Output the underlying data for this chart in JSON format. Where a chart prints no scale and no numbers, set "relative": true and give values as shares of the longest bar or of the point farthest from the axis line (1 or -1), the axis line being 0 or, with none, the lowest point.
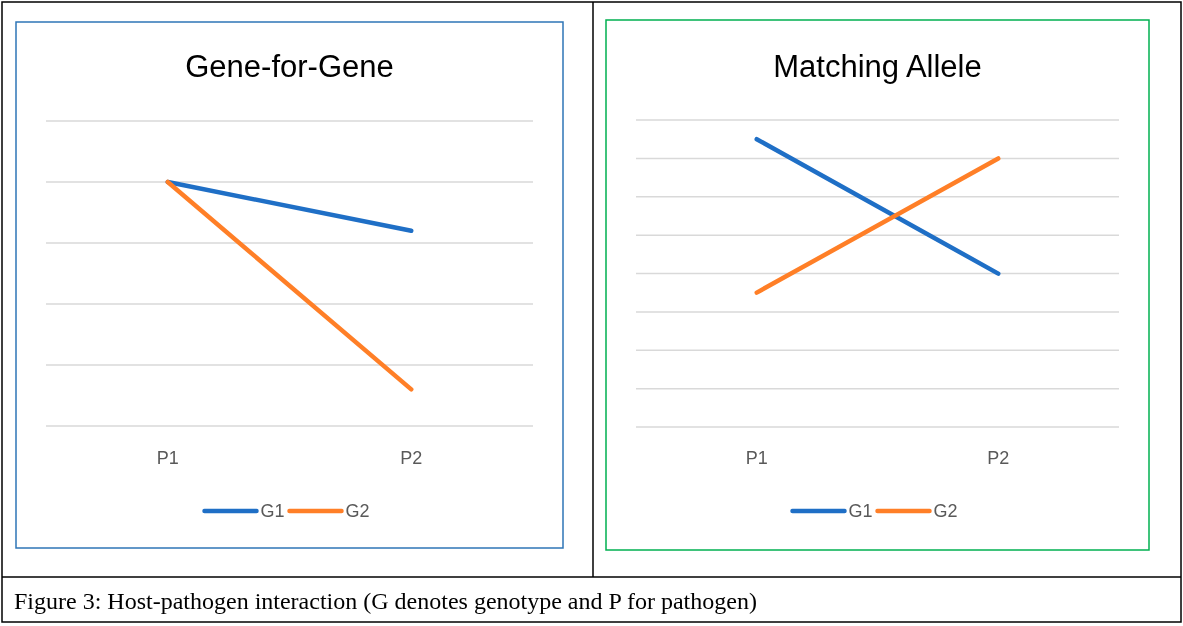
{
  "chart_data": [
    {
      "type": "line",
      "title": "Gene-for-Gene",
      "categories": [
        "P1",
        "P2"
      ],
      "relative": true,
      "grid": "y",
      "legend": "bottom",
      "marker": "none",
      "line_style": "solid",
      "annotations": [
        "Figure 3: Host-pathogen interaction (G denotes genotype and P for pathogen)"
      ],
      "series": [
        {
          "name": "G1",
          "color": "#1f6fc6",
          "values": [
            1,
            0.8
          ]
        },
        {
          "name": "G2",
          "color": "#ff7f27",
          "values": [
            1,
            0.15
          ]
        }
      ]
    },
    {
      "type": "line",
      "title": "Matching Allele",
      "categories": [
        "P1",
        "P2"
      ],
      "relative": true,
      "grid": "y",
      "legend": "bottom",
      "marker": "none",
      "line_style": "solid",
      "series": [
        {
          "name": "G1",
          "color": "#1f6fc6",
          "values": [
            1,
            0.533
          ]
        },
        {
          "name": "G2",
          "color": "#ff7f27",
          "values": [
            0.467,
            0.933
          ]
        }
      ]
    }
  ]
}
